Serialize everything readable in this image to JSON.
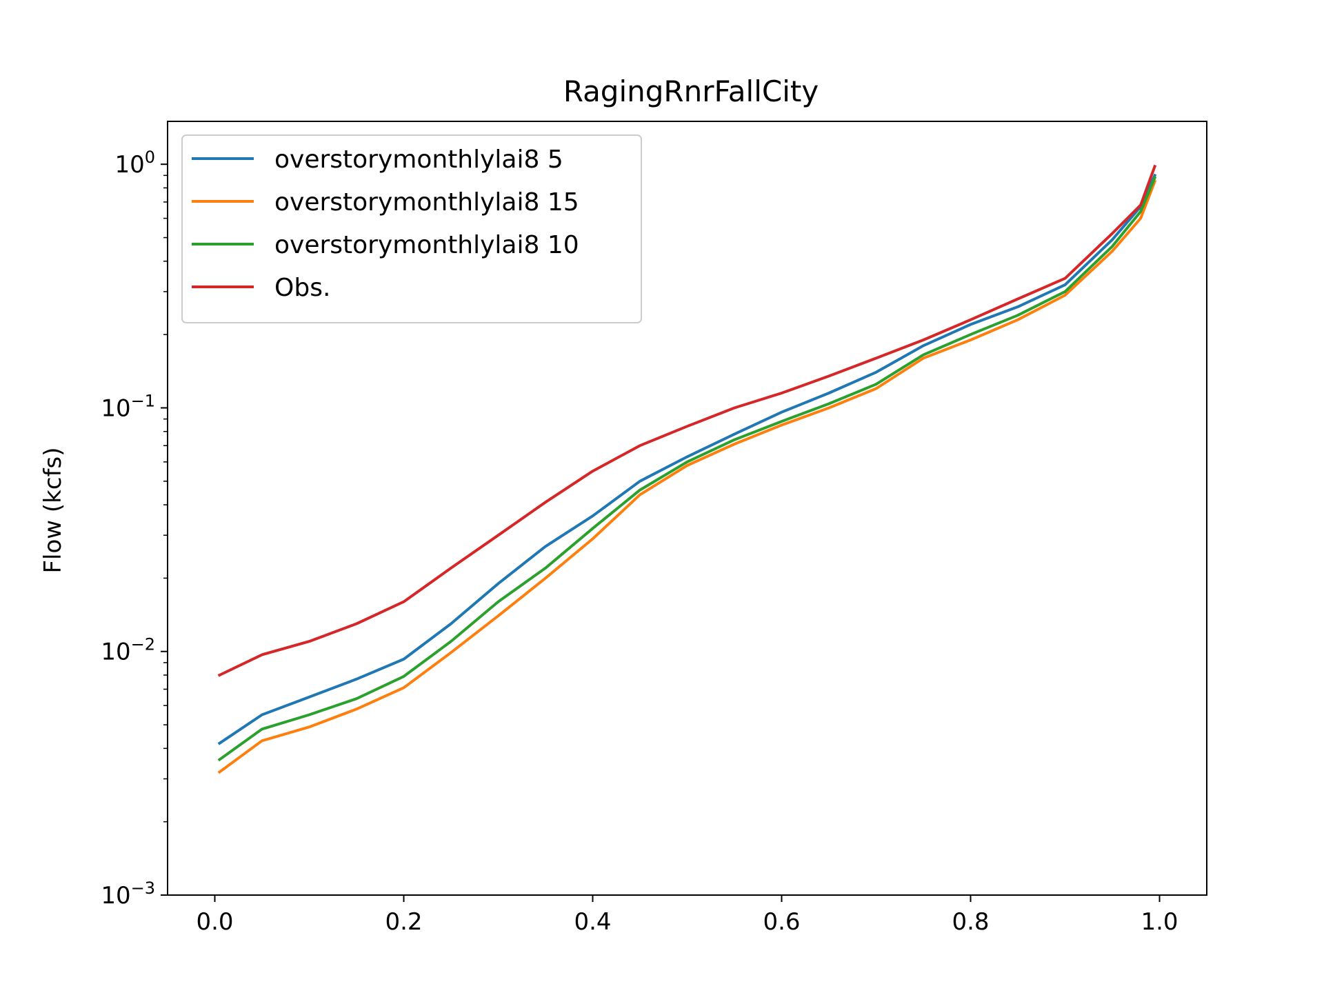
{
  "chart_data": {
    "type": "line",
    "title": "RagingRnrFallCity",
    "xlabel": "",
    "ylabel": "Flow (kcfs)",
    "xlim": [
      -0.05,
      1.05
    ],
    "ylim": [
      0.001,
      1.5
    ],
    "yscale": "log",
    "grid": false,
    "legend_position": "top-left",
    "x_ticks": [
      0.0,
      0.2,
      0.4,
      0.6,
      0.8,
      1.0
    ],
    "x_tick_labels": [
      "0.0",
      "0.2",
      "0.4",
      "0.6",
      "0.8",
      "1.0"
    ],
    "y_ticks": [
      0.001,
      0.01,
      0.1,
      1
    ],
    "y_tick_labels": [
      {
        "base": "10",
        "exp": "−3"
      },
      {
        "base": "10",
        "exp": "−2"
      },
      {
        "base": "10",
        "exp": "−1"
      },
      {
        "base": "10",
        "exp": "0"
      }
    ],
    "x": [
      0.005,
      0.05,
      0.1,
      0.15,
      0.2,
      0.25,
      0.3,
      0.35,
      0.4,
      0.45,
      0.5,
      0.55,
      0.6,
      0.65,
      0.7,
      0.75,
      0.8,
      0.85,
      0.9,
      0.95,
      0.98,
      0.995
    ],
    "series": [
      {
        "name": "overstorymonthlylai8 5",
        "color": "#1f77b4",
        "values": [
          0.0042,
          0.0055,
          0.0065,
          0.0077,
          0.0093,
          0.013,
          0.019,
          0.027,
          0.036,
          0.05,
          0.063,
          0.078,
          0.096,
          0.115,
          0.14,
          0.18,
          0.22,
          0.26,
          0.32,
          0.49,
          0.67,
          0.9
        ]
      },
      {
        "name": "overstorymonthlylai8 15",
        "color": "#ff7f0e",
        "values": [
          0.0032,
          0.0043,
          0.0049,
          0.0058,
          0.0071,
          0.0099,
          0.014,
          0.02,
          0.029,
          0.044,
          0.058,
          0.071,
          0.085,
          0.1,
          0.12,
          0.16,
          0.19,
          0.23,
          0.29,
          0.44,
          0.6,
          0.85
        ]
      },
      {
        "name": "overstorymonthlylai8 10",
        "color": "#2ca02c",
        "values": [
          0.0036,
          0.0048,
          0.0055,
          0.0064,
          0.0079,
          0.011,
          0.016,
          0.022,
          0.032,
          0.046,
          0.06,
          0.074,
          0.088,
          0.104,
          0.125,
          0.165,
          0.2,
          0.24,
          0.3,
          0.46,
          0.64,
          0.88
        ]
      },
      {
        "name": "Obs.",
        "color": "#d62728",
        "values": [
          0.008,
          0.0097,
          0.011,
          0.013,
          0.016,
          0.022,
          0.03,
          0.041,
          0.055,
          0.07,
          0.084,
          0.1,
          0.115,
          0.135,
          0.16,
          0.19,
          0.23,
          0.28,
          0.34,
          0.52,
          0.68,
          0.98
        ]
      }
    ]
  }
}
